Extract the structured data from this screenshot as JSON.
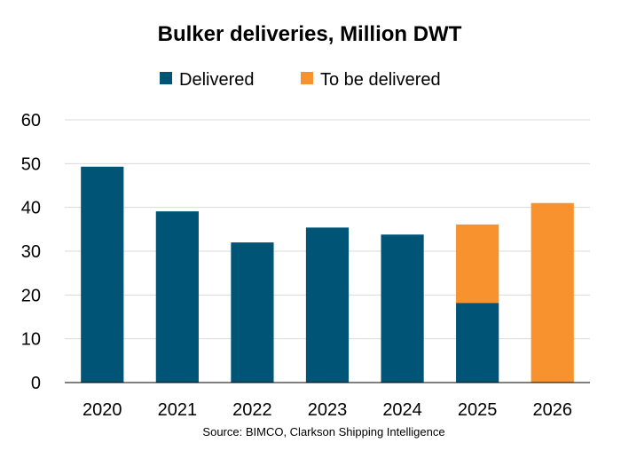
{
  "chart_data": {
    "type": "bar",
    "stacked": true,
    "title": "Bulker deliveries, Million DWT",
    "categories": [
      "2020",
      "2021",
      "2022",
      "2023",
      "2024",
      "2025",
      "2026"
    ],
    "series": [
      {
        "name": "Delivered",
        "color": "#005577",
        "values": [
          49.3,
          39.1,
          32.0,
          35.4,
          33.8,
          18.2,
          0
        ]
      },
      {
        "name": "To be delivered",
        "color": "#F7922F",
        "values": [
          0,
          0,
          0,
          0,
          0,
          17.9,
          41.0
        ]
      }
    ],
    "ylim": [
      0,
      60
    ],
    "yticks": [
      "0",
      "10",
      "20",
      "30",
      "40",
      "50",
      "60"
    ],
    "grid": true,
    "legend_position": "top",
    "source": "Source: BIMCO, Clarkson Shipping Intelligence"
  }
}
